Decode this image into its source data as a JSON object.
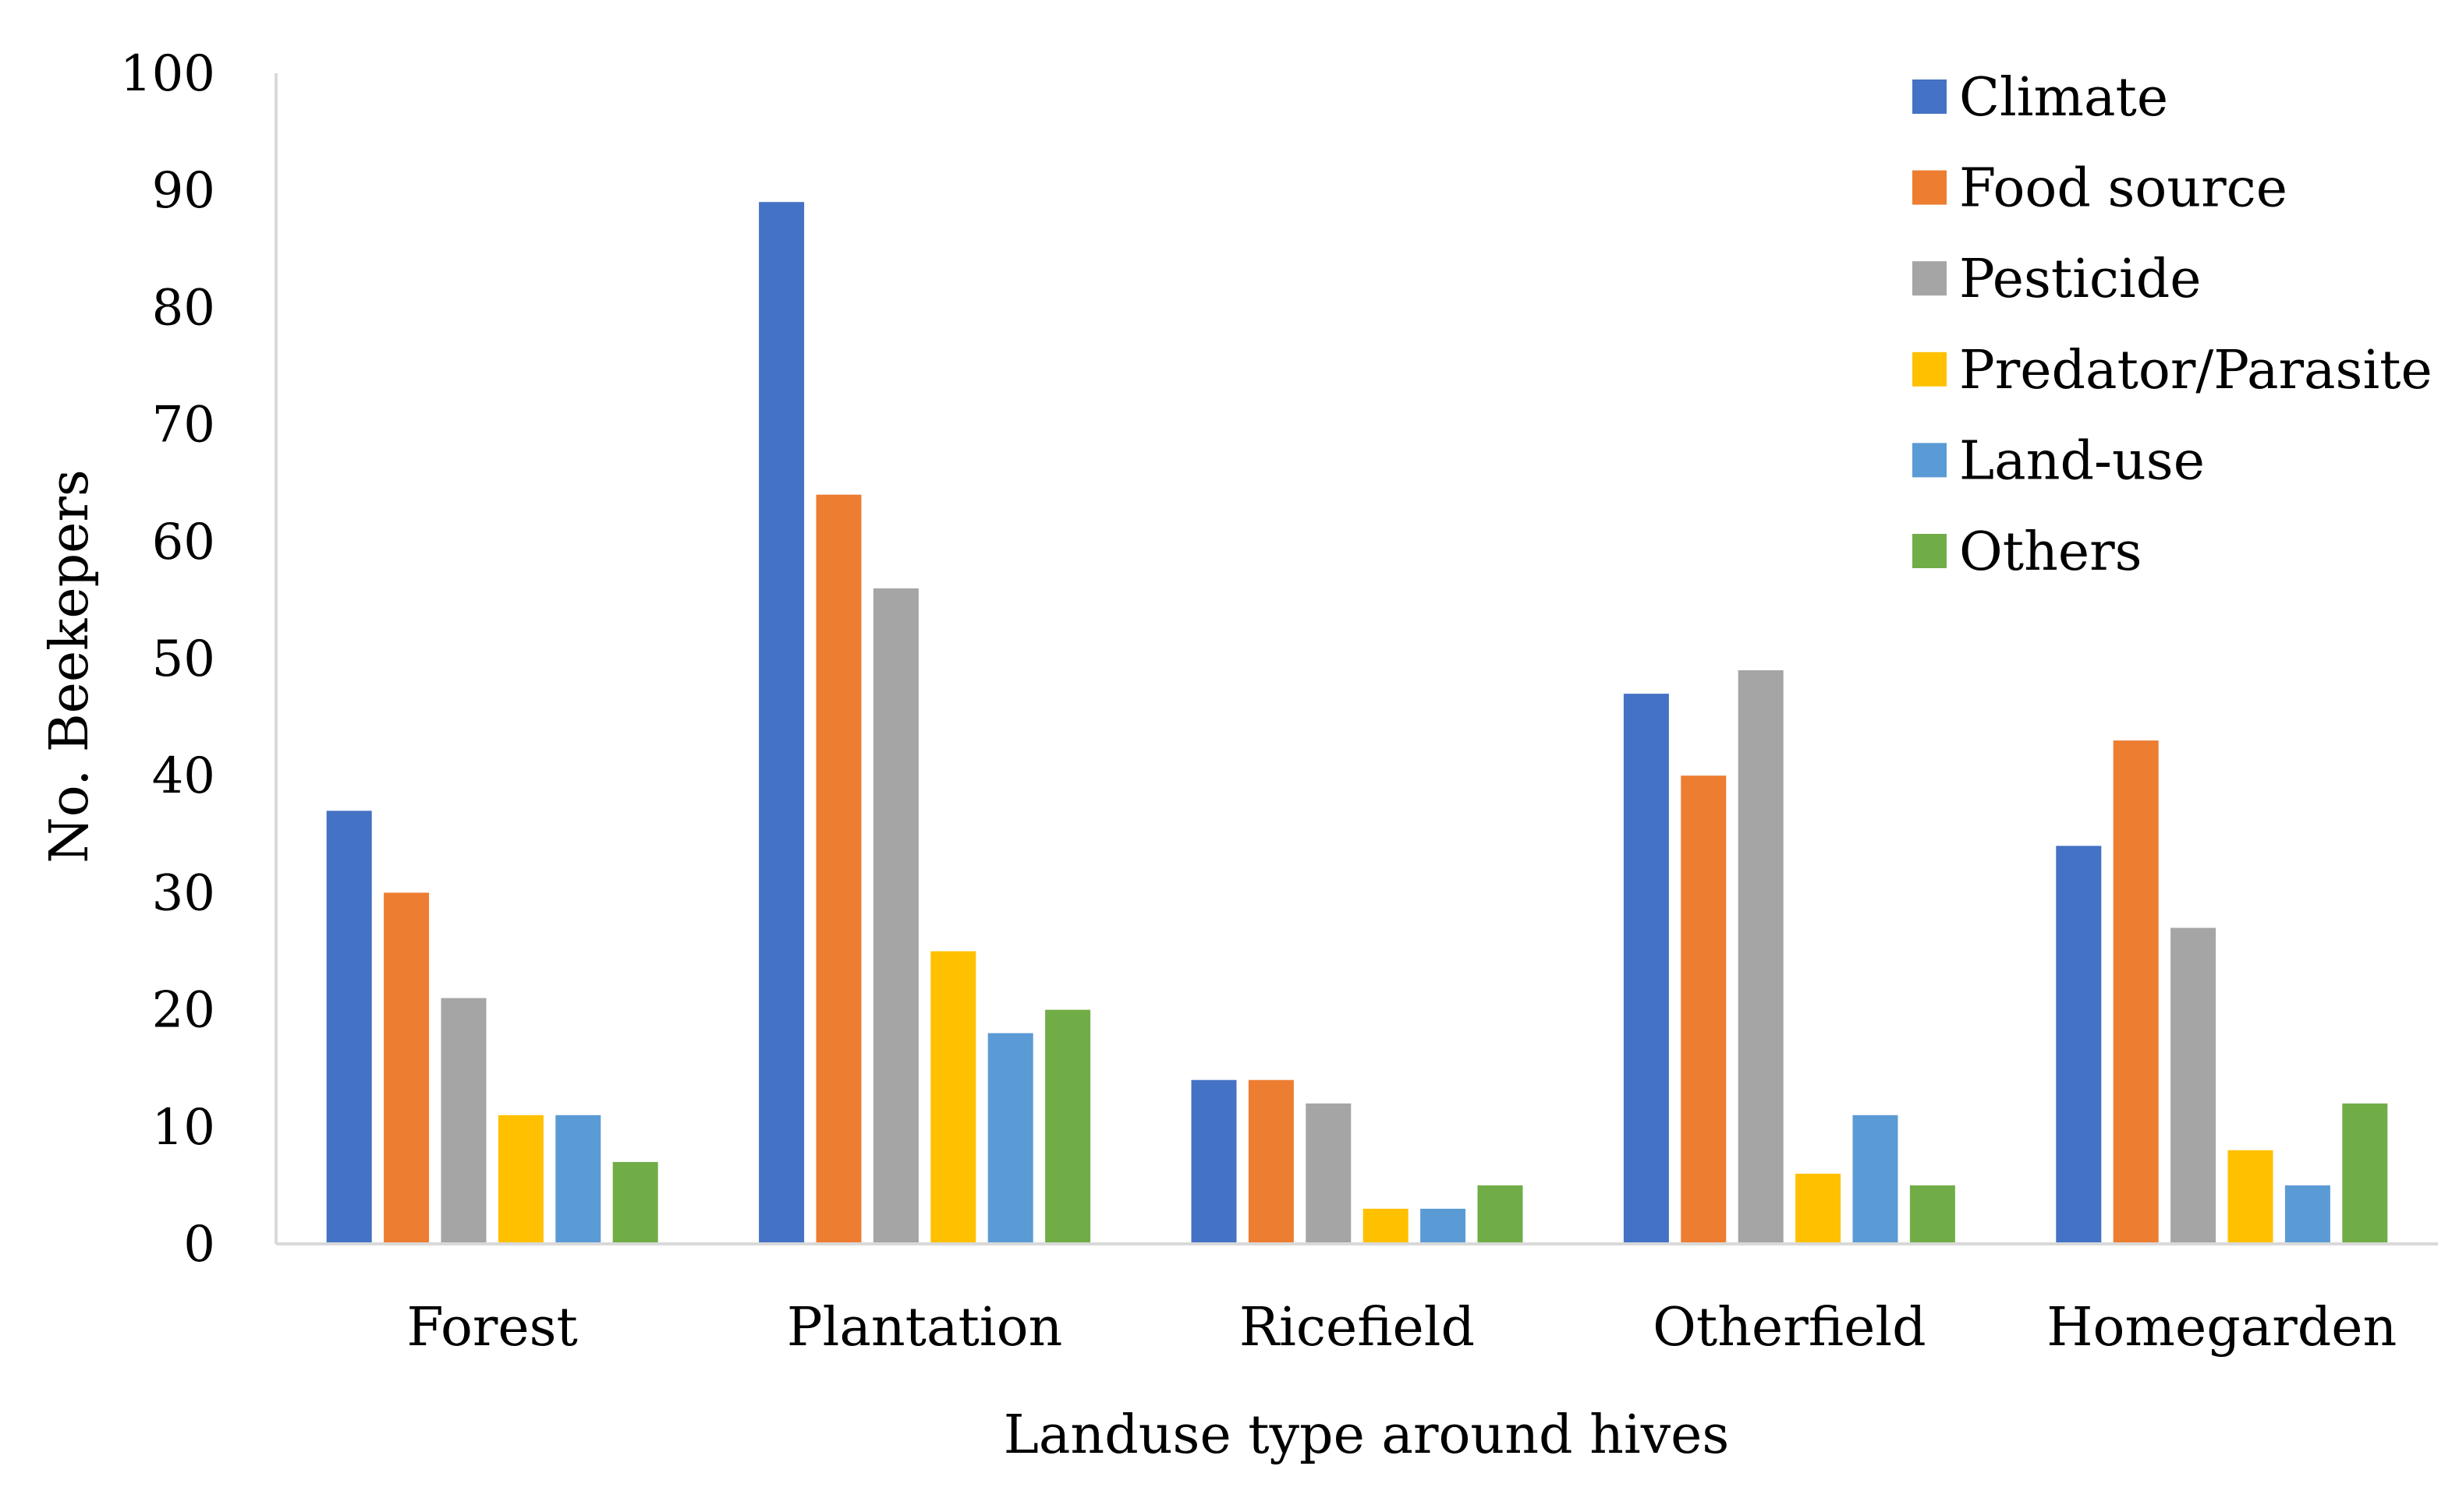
{
  "chart_data": {
    "type": "bar",
    "title": "",
    "xlabel": "Landuse type around hives",
    "ylabel": "No. Beekepers",
    "ylim": [
      0,
      100
    ],
    "yticks": [
      0,
      10,
      20,
      30,
      40,
      50,
      60,
      70,
      80,
      90,
      100
    ],
    "grid": false,
    "legend_position": "top-right",
    "categories": [
      "Forest",
      "Plantation",
      "Ricefield",
      "Otherfield",
      "Homegarden"
    ],
    "series": [
      {
        "name": "Climate",
        "color": "#4472C4",
        "values": [
          37,
          89,
          14,
          47,
          34
        ]
      },
      {
        "name": "Food source",
        "color": "#ED7D31",
        "values": [
          30,
          64,
          14,
          40,
          43
        ]
      },
      {
        "name": "Pesticide",
        "color": "#A5A5A5",
        "values": [
          21,
          56,
          12,
          49,
          27
        ]
      },
      {
        "name": "Predator/Parasite",
        "color": "#FFC000",
        "values": [
          11,
          25,
          3,
          6,
          8
        ]
      },
      {
        "name": "Land-use",
        "color": "#5B9BD5",
        "values": [
          11,
          18,
          3,
          11,
          5
        ]
      },
      {
        "name": "Others",
        "color": "#70AD47",
        "values": [
          7,
          20,
          5,
          5,
          12
        ]
      }
    ]
  }
}
